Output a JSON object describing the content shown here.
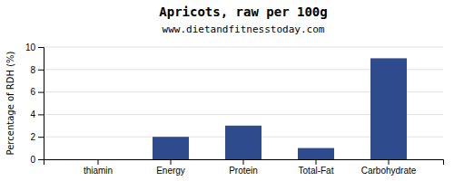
{
  "chart_data": {
    "type": "bar",
    "title": "Apricots, raw per 100g",
    "subtitle": "www.dietandfitnesstoday.com",
    "categories": [
      "thiamin",
      "Energy",
      "Protein",
      "Total-Fat",
      "Carbohydrate"
    ],
    "values": [
      0,
      2,
      3,
      1,
      9
    ],
    "color": "#2e4b8e",
    "ylabel": "Percentage of RDH (%)",
    "ylim": [
      0,
      10
    ],
    "yticks": [
      0,
      2,
      4,
      6,
      8,
      10
    ],
    "grid": true
  }
}
